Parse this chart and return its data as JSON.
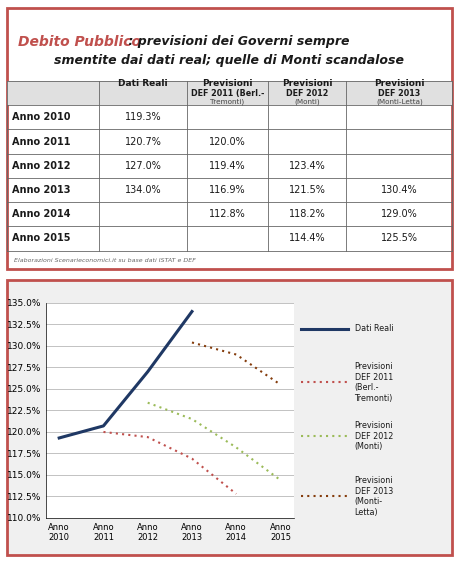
{
  "title_bold": "Debito Pubblico",
  "title_rest1": " : previsioni dei Governi sempre",
  "title_rest2": "smentite dai dati real; quelle di Monti scandalose",
  "rows": [
    [
      "Anno 2010",
      "119.3%",
      "",
      "",
      ""
    ],
    [
      "Anno 2011",
      "120.7%",
      "120.0%",
      "",
      ""
    ],
    [
      "Anno 2012",
      "127.0%",
      "119.4%",
      "123.4%",
      ""
    ],
    [
      "Anno 2013",
      "134.0%",
      "116.9%",
      "121.5%",
      "130.4%"
    ],
    [
      "Anno 2014",
      "",
      "112.8%",
      "118.2%",
      "129.0%"
    ],
    [
      "Anno 2015",
      "",
      "",
      "114.4%",
      "125.5%"
    ]
  ],
  "footer_text": "Elaborazioni Scenarieconomici.it su base dati ISTAT e DEF",
  "years": [
    2010,
    2011,
    2012,
    2013,
    2014,
    2015
  ],
  "year_labels": [
    "Anno\n2010",
    "Anno\n2011",
    "Anno\n2012",
    "Anno\n2013",
    "Anno\n2014",
    "Anno\n2015"
  ],
  "dati_reali": [
    119.3,
    120.7,
    127.0,
    134.0,
    null,
    null
  ],
  "prev_def2011": [
    null,
    120.0,
    119.4,
    116.9,
    112.8,
    null
  ],
  "prev_def2012": [
    null,
    null,
    123.4,
    121.5,
    118.2,
    114.4
  ],
  "prev_def2013": [
    null,
    null,
    null,
    130.4,
    129.0,
    125.5
  ],
  "color_reali": "#1f3864",
  "color_def2011": "#c0504d",
  "color_def2012": "#9bbb59",
  "color_def2013": "#843c0c",
  "ylim": [
    110.0,
    135.0
  ],
  "yticks": [
    110.0,
    112.5,
    115.0,
    117.5,
    120.0,
    122.5,
    125.0,
    127.5,
    130.0,
    132.5,
    135.0
  ],
  "outer_border_color": "#c0504d",
  "grid_color": "#aaaaaa"
}
